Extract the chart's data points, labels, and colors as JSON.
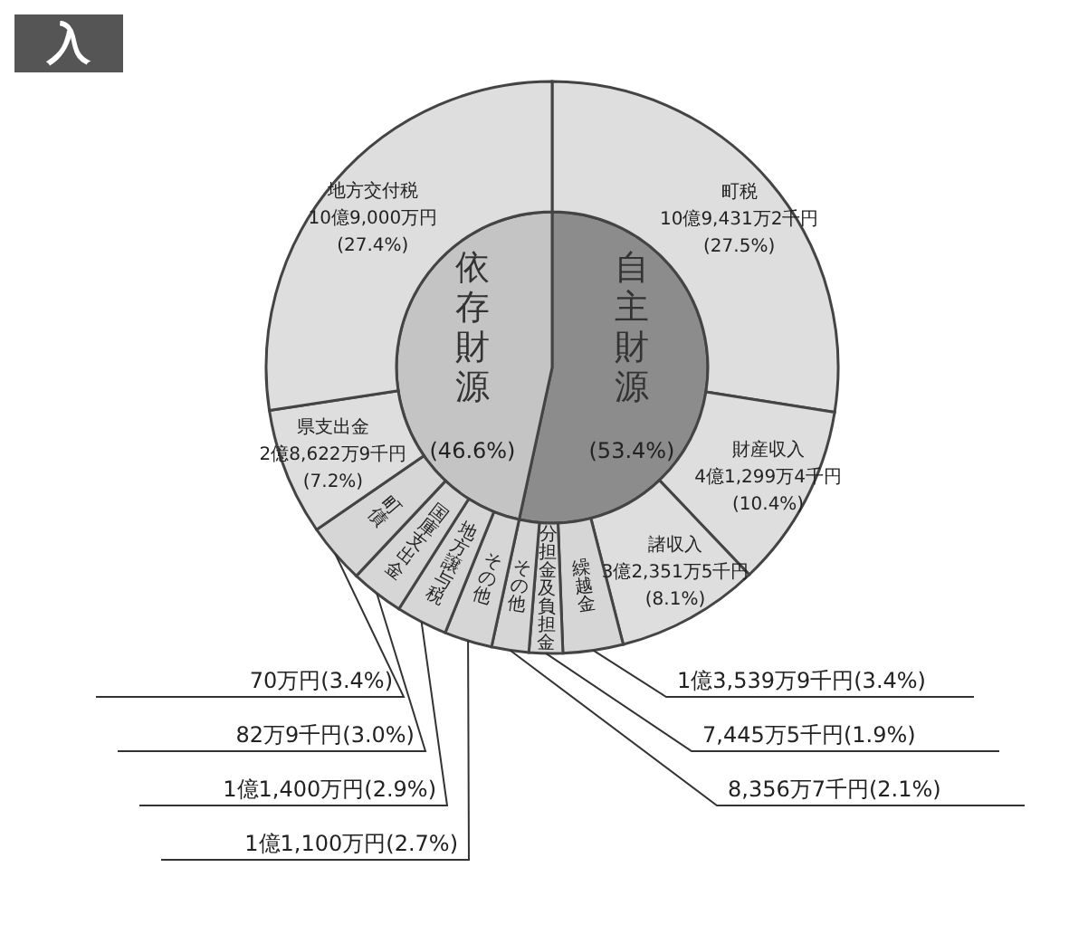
{
  "chart_data": [
    {
      "type": "pie",
      "title": "入",
      "categories": [
        "自主財源",
        "依存財源"
      ],
      "values": [
        53.4,
        46.6
      ],
      "colors": [
        "#8c8c8c",
        "#c4c4c4"
      ],
      "value_labels": [
        "(53.4%)",
        "(46.6%)"
      ]
    },
    {
      "type": "donut",
      "categories": [
        "町税",
        "財産収入",
        "諸収入",
        "繰越金",
        "分担金及負担金",
        "その他",
        "その他",
        "地方譲与税",
        "国庫支出金",
        "町債",
        "県支出金",
        "地方交付税"
      ],
      "values": [
        27.5,
        10.4,
        8.1,
        3.4,
        1.9,
        2.1,
        2.7,
        2.9,
        3.0,
        3.4,
        7.2,
        27.4
      ],
      "colors": [
        "#dedede",
        "#dedede",
        "#dedede",
        "#d6d6d6",
        "#d6d6d6",
        "#d6d6d6",
        "#d6d6d6",
        "#d6d6d6",
        "#d6d6d6",
        "#d6d6d6",
        "#dedede",
        "#dedede"
      ],
      "value_labels": [
        "10億9,431万2千円(27.5%)",
        "4億1,299万4千円(10.4%)",
        "3億2,351万5千円(8.1%)",
        "1億3,539万9千円(3.4%)",
        "7,445万5千円(1.9%)",
        "8,356万7千円(2.1%)",
        "1億1,100万円(2.7%)",
        "1億1,400万円(2.9%)",
        "82万9千円(3.0%)",
        "70万円(3.4%)",
        "2億8,622万9千円(7.2%)",
        "10億9,000万円(27.4%)"
      ]
    }
  ]
}
